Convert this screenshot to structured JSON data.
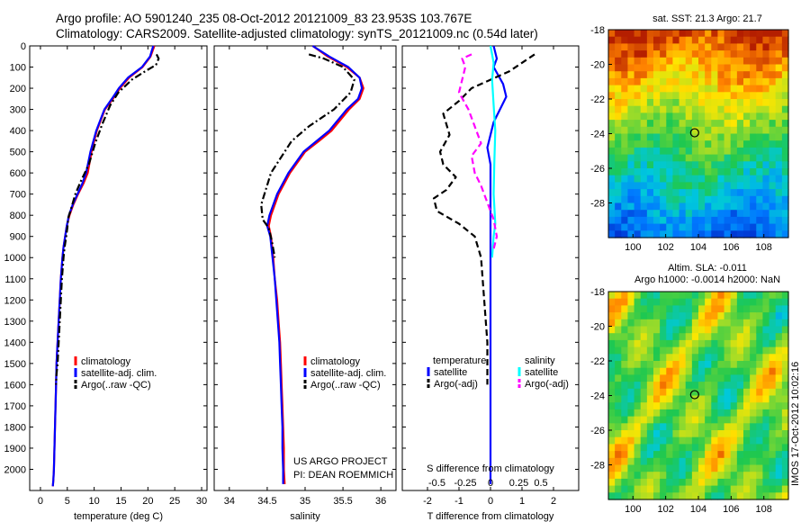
{
  "figure": {
    "title_line1": "Argo profile: AO 5901240_235 08-Oct-2012 20121009_83 23.953S 103.767E",
    "title_line2": "Climatology: CARS2009. Satellite-adjusted climatology: synTS_20121009.nc (0.54d later)",
    "stamp": "IMOS 17-Oct-2012 10:02:16",
    "project_line1": "US ARGO PROJECT",
    "project_line2": "PI: DEAN ROEMMICH"
  },
  "colors": {
    "climatology": "#ff0000",
    "satellite": "#0000ff",
    "argo": "#000000",
    "salinity_satellite": "#00ffff",
    "salinity_argo": "#ff00ff"
  },
  "chart_data": [
    {
      "type": "line",
      "xlabel": "temperature (deg C)",
      "ylabel": "",
      "xlim": [
        -2,
        31
      ],
      "ylim": [
        2100,
        0
      ],
      "xticks": [
        "0",
        "5",
        "10",
        "15",
        "20",
        "25",
        "30"
      ],
      "yticks": [
        "0",
        "100",
        "200",
        "300",
        "400",
        "500",
        "600",
        "700",
        "800",
        "900",
        "1000",
        "1100",
        "1200",
        "1300",
        "1400",
        "1500",
        "1600",
        "1700",
        "1800",
        "1900",
        "2000"
      ],
      "legend": [
        "climatology",
        "satellite-adj. clim.",
        "Argo(..raw -QC)"
      ],
      "legend_position": "lower-center",
      "series": [
        {
          "name": "climatology",
          "x": [
            21.2,
            20.5,
            19.0,
            16.5,
            14.8,
            13.5,
            12.0,
            10.5,
            9.5,
            8.8,
            8.0,
            7.0,
            6.1,
            5.4,
            4.9,
            4.6,
            4.3,
            4.1,
            3.8,
            3.6,
            3.4,
            3.2,
            3.0,
            2.9,
            2.8,
            2.7,
            2.6,
            2.5,
            2.4,
            2.3
          ],
          "y": [
            0,
            50,
            100,
            150,
            200,
            250,
            300,
            400,
            500,
            600,
            650,
            700,
            750,
            800,
            850,
            900,
            950,
            1000,
            1100,
            1200,
            1300,
            1400,
            1500,
            1600,
            1700,
            1800,
            1900,
            2000,
            2050,
            2080
          ]
        },
        {
          "name": "satellite-adj. clim.",
          "x": [
            21.0,
            20.4,
            18.9,
            16.3,
            14.6,
            13.3,
            11.9,
            10.4,
            9.3,
            8.5,
            7.8,
            6.9,
            6.0,
            5.3,
            4.9,
            4.6,
            4.3,
            4.1,
            3.8,
            3.6,
            3.4,
            3.2,
            3.0,
            2.9,
            2.8,
            2.7,
            2.6,
            2.5,
            2.4,
            2.3
          ],
          "y": [
            0,
            50,
            100,
            150,
            200,
            250,
            300,
            400,
            500,
            600,
            650,
            700,
            750,
            800,
            850,
            900,
            950,
            1000,
            1100,
            1200,
            1300,
            1400,
            1500,
            1600,
            1700,
            1800,
            1900,
            2000,
            2050,
            2080
          ]
        },
        {
          "name": "Argo(..raw -QC)",
          "x": [
            21.6,
            22.0,
            21.5,
            19.5,
            17.0,
            14.5,
            13.0,
            11.5,
            10.2,
            9.0,
            7.5,
            6.5,
            5.8,
            5.2,
            5.0,
            4.8,
            4.5,
            4.3,
            4.0,
            3.8,
            3.6,
            3.4,
            3.2,
            3.0,
            2.9
          ],
          "y": [
            40,
            60,
            90,
            120,
            160,
            220,
            280,
            370,
            460,
            560,
            640,
            700,
            760,
            810,
            860,
            900,
            950,
            1000,
            1100,
            1200,
            1300,
            1400,
            1500,
            1550,
            1600
          ]
        }
      ]
    },
    {
      "type": "line",
      "xlabel": "salinity",
      "ylabel": "",
      "xlim": [
        33.8,
        36.2
      ],
      "ylim": [
        2100,
        0
      ],
      "xticks": [
        "34",
        "34.5",
        "35",
        "35.5",
        "36"
      ],
      "legend": [
        "climatology",
        "satellite-adj. clim.",
        "Argo(..raw -QC)"
      ],
      "legend_position": "lower-right",
      "series": [
        {
          "name": "climatology",
          "x": [
            35.1,
            35.3,
            35.55,
            35.72,
            35.77,
            35.72,
            35.58,
            35.35,
            35.18,
            35.0,
            34.8,
            34.65,
            34.55,
            34.52,
            34.55,
            34.58,
            34.6,
            34.63,
            34.65,
            34.67,
            34.68,
            34.69,
            34.7,
            34.71,
            34.72,
            34.72,
            34.73
          ],
          "y": [
            0,
            50,
            100,
            150,
            200,
            250,
            300,
            400,
            450,
            500,
            600,
            700,
            800,
            850,
            900,
            1000,
            1100,
            1200,
            1300,
            1400,
            1500,
            1600,
            1700,
            1800,
            1900,
            2000,
            2070
          ]
        },
        {
          "name": "satellite-adj. clim.",
          "x": [
            35.1,
            35.32,
            35.57,
            35.72,
            35.75,
            35.7,
            35.55,
            35.32,
            35.15,
            34.98,
            34.78,
            34.63,
            34.53,
            34.5,
            34.54,
            34.57,
            34.6,
            34.62,
            34.64,
            34.66,
            34.67,
            34.68,
            34.69,
            34.7,
            34.7,
            34.71,
            34.71
          ],
          "y": [
            0,
            50,
            100,
            150,
            200,
            250,
            300,
            400,
            450,
            500,
            600,
            700,
            800,
            850,
            900,
            1000,
            1100,
            1200,
            1300,
            1400,
            1500,
            1600,
            1700,
            1800,
            1900,
            2000,
            2070
          ]
        },
        {
          "name": "Argo(..raw -QC)",
          "x": [
            35.05,
            35.25,
            35.5,
            35.65,
            35.6,
            35.38,
            35.05,
            34.82,
            34.55,
            34.42,
            34.44,
            34.52,
            34.56,
            34.6
          ],
          "y": [
            40,
            60,
            100,
            160,
            220,
            300,
            380,
            450,
            600,
            750,
            820,
            860,
            920,
            1000
          ]
        }
      ]
    },
    {
      "type": "line",
      "xlabel": "T difference from climatology",
      "xlabel_top": "S difference from climatology",
      "ylabel": "",
      "xlim": [
        -2.8,
        2.8
      ],
      "ylim": [
        2100,
        0
      ],
      "xticks": [
        "-2",
        "-1",
        "0",
        "1",
        "2"
      ],
      "xticks_top": [
        "-0.5",
        "-0.25",
        "0",
        "0.25",
        "0.5"
      ],
      "legend_titles": [
        "temperature",
        "salinity"
      ],
      "legend": [
        "satellite",
        "Argo(-adj)",
        "satellite",
        "Argo(-adj)"
      ],
      "legend_position": "lower-center",
      "series": [
        {
          "name": "satellite",
          "group": "temperature",
          "x": [
            0.1,
            0.2,
            0.1,
            0.4,
            0.5,
            0.3,
            0.1,
            0.0,
            -0.1,
            0.0,
            0.0,
            0.0,
            0.0,
            0.0,
            0.0,
            0.0,
            0.0,
            0.0,
            0.0
          ],
          "y": [
            0,
            60,
            100,
            180,
            240,
            300,
            360,
            420,
            480,
            560,
            700,
            860,
            1000,
            1200,
            1400,
            1600,
            1800,
            2000,
            2070
          ]
        },
        {
          "name": "Argo(-adj)",
          "group": "temperature",
          "x": [
            1.4,
            1.0,
            0.6,
            0.0,
            -0.6,
            -1.0,
            -1.5,
            -1.3,
            -1.6,
            -1.5,
            -1.1,
            -1.4,
            -1.8,
            -1.7,
            -1.0,
            -0.5,
            -0.3,
            -0.2,
            -0.1,
            -0.1
          ],
          "y": [
            40,
            80,
            120,
            160,
            200,
            260,
            320,
            420,
            500,
            560,
            620,
            680,
            720,
            780,
            840,
            900,
            1000,
            1200,
            1400,
            1600
          ]
        },
        {
          "name": "satellite",
          "group": "salinity",
          "x": [
            0.0,
            0.1,
            0.05,
            0.1,
            0.15,
            0.12,
            0.1,
            0.15,
            0.1,
            0.05
          ],
          "y": [
            0,
            80,
            160,
            280,
            400,
            560,
            700,
            840,
            900,
            1000
          ]
        },
        {
          "name": "Argo(-adj)",
          "group": "salinity",
          "x": [
            -0.6,
            -0.9,
            -0.8,
            -0.9,
            -1.0,
            -0.7,
            -0.5,
            -0.3,
            -0.6,
            -0.5,
            -0.3,
            -0.1,
            0.1,
            0.2,
            0.1
          ],
          "y": [
            40,
            60,
            100,
            160,
            220,
            300,
            380,
            460,
            520,
            600,
            660,
            740,
            820,
            900,
            960
          ]
        }
      ]
    },
    {
      "type": "heatmap",
      "title": "sat. SST: 21.3  Argo: 21.7",
      "xlim": [
        98.5,
        109.5
      ],
      "ylim": [
        -30,
        -18
      ],
      "xticks": [
        "100",
        "102",
        "104",
        "106",
        "108"
      ],
      "yticks": [
        "-18",
        "-20",
        "-22",
        "-24",
        "-26",
        "-28"
      ],
      "marker": {
        "lon": 103.77,
        "lat": -23.95
      }
    },
    {
      "type": "heatmap",
      "title_line1": "Altim. SLA: -0.011",
      "title_line2": "Argo h1000: -0.0014 h2000: NaN",
      "xlim": [
        98.5,
        109.5
      ],
      "ylim": [
        -30,
        -18
      ],
      "xticks": [
        "100",
        "102",
        "104",
        "106",
        "108"
      ],
      "yticks": [
        "-18",
        "-20",
        "-22",
        "-24",
        "-26",
        "-28"
      ],
      "marker": {
        "lon": 103.77,
        "lat": -23.95
      }
    }
  ]
}
